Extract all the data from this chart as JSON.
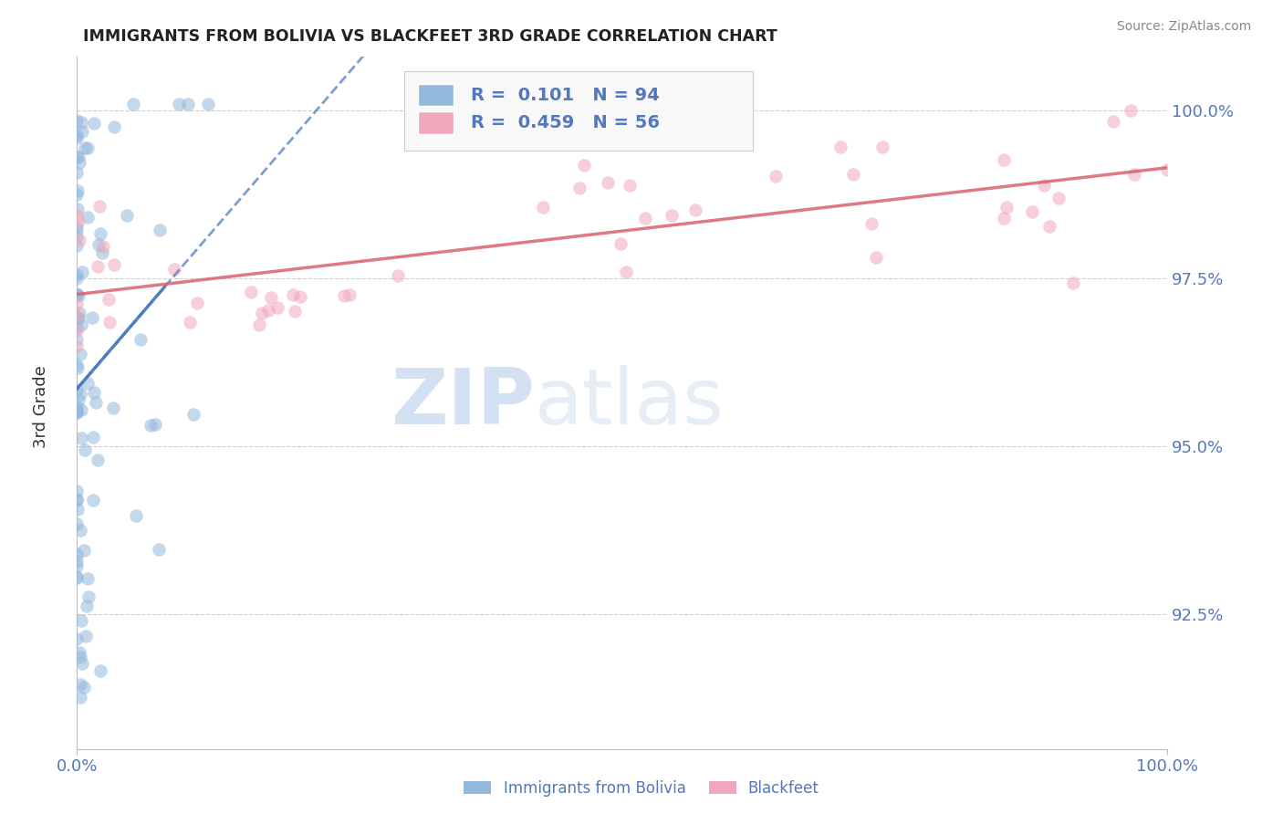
{
  "title": "IMMIGRANTS FROM BOLIVIA VS BLACKFEET 3RD GRADE CORRELATION CHART",
  "source": "Source: ZipAtlas.com",
  "ylabel": "3rd Grade",
  "y_tick_labels": [
    "100.0%",
    "97.5%",
    "95.0%",
    "92.5%"
  ],
  "y_tick_values": [
    1.0,
    0.975,
    0.95,
    0.925
  ],
  "x_min": 0.0,
  "x_max": 1.0,
  "y_min": 0.905,
  "y_max": 1.008,
  "legend_R1": "0.101",
  "legend_N1": "94",
  "legend_R2": "0.459",
  "legend_N2": "56",
  "bolivia_scatter_color": "#92b8dc",
  "blackfeet_scatter_color": "#f0a8bc",
  "bolivia_trend_color": "#4477bb",
  "blackfeet_trend_color": "#d96070",
  "bolivia_trend_style": "solid",
  "blackfeet_trend_style": "solid",
  "background_color": "#ffffff",
  "grid_color": "#d0d0d0",
  "tick_label_color": "#5577bb",
  "watermark_zip": "ZIP",
  "watermark_atlas": "atlas",
  "bottom_label_bolivia": "Immigrants from Bolivia",
  "bottom_label_blackfeet": "Blackfeet"
}
